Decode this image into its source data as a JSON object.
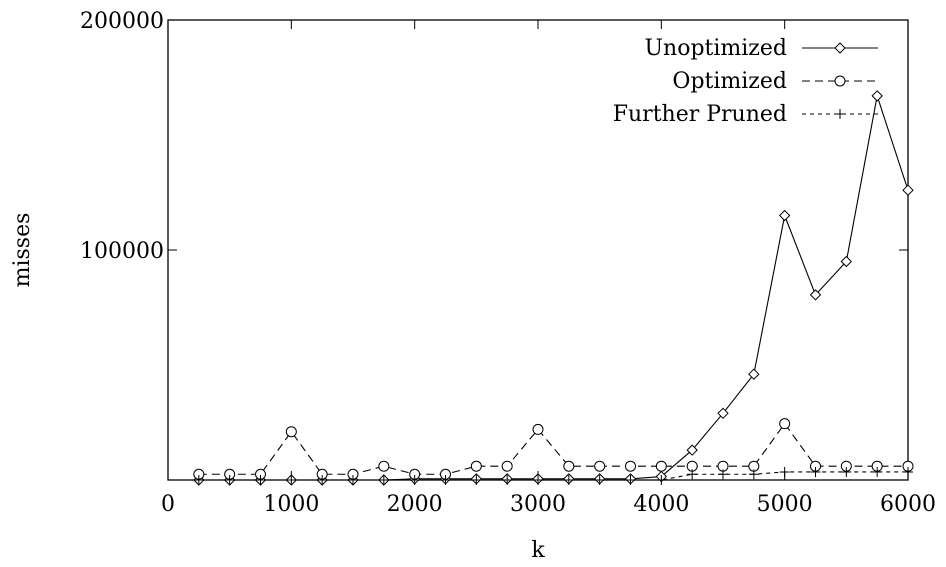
{
  "chart_data": {
    "type": "line",
    "title": "",
    "xlabel": "k",
    "ylabel": "misses",
    "xlim": [
      0,
      6000
    ],
    "ylim": [
      0,
      200000
    ],
    "xticks": [
      "0",
      "1000",
      "2000",
      "3000",
      "4000",
      "5000",
      "6000"
    ],
    "yticks": [
      "100000",
      "200000"
    ],
    "grid": false,
    "legend_position": "top-right",
    "x": [
      250,
      500,
      750,
      1000,
      1250,
      1500,
      1750,
      2000,
      2250,
      2500,
      2750,
      3000,
      3250,
      3500,
      3750,
      4000,
      4250,
      4500,
      4750,
      5000,
      5250,
      5500,
      5750,
      6000
    ],
    "series": [
      {
        "name": "Unoptimized",
        "marker": "diamond",
        "dash": "solid",
        "values": [
          0,
          0,
          0,
          0,
          0,
          0,
          0,
          500,
          500,
          500,
          500,
          500,
          500,
          500,
          500,
          1500,
          13000,
          29000,
          46000,
          115000,
          80500,
          95000,
          167000,
          126000
        ]
      },
      {
        "name": "Optimized",
        "marker": "circle",
        "dash": "dashed",
        "values": [
          2500,
          2500,
          2500,
          21000,
          2500,
          2500,
          6000,
          2500,
          2500,
          6000,
          6000,
          22000,
          6000,
          6000,
          6000,
          6000,
          6000,
          6000,
          6000,
          24500,
          6000,
          6000,
          6000,
          6000
        ]
      },
      {
        "name": "Further Pruned",
        "marker": "plus",
        "dash": "dotted",
        "values": [
          0,
          0,
          0,
          0,
          0,
          0,
          0,
          0,
          0,
          0,
          0,
          0,
          0,
          0,
          0,
          0,
          2500,
          2500,
          2500,
          3500,
          3500,
          3500,
          3500,
          3500
        ]
      }
    ]
  }
}
